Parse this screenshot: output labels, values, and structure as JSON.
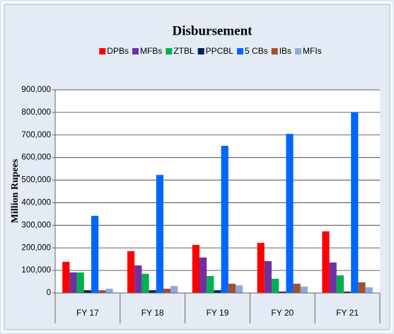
{
  "chart_data": {
    "type": "bar",
    "title": "Disbursement",
    "ylabel": "Million Rupees",
    "categories": [
      "FY 17",
      "FY 18",
      "FY 19",
      "FY 20",
      "FY 21"
    ],
    "series": [
      {
        "name": "DPBs",
        "color": "#ff0000",
        "values": [
          138000,
          185000,
          213000,
          222000,
          273000
        ]
      },
      {
        "name": "MFBs",
        "color": "#7030a0",
        "values": [
          91000,
          122000,
          157000,
          141000,
          135000
        ]
      },
      {
        "name": "ZTBL",
        "color": "#00b050",
        "values": [
          91000,
          85000,
          75000,
          63000,
          78000
        ]
      },
      {
        "name": "PPCBL",
        "color": "#002060",
        "values": [
          12000,
          12000,
          12000,
          6000,
          6000
        ]
      },
      {
        "name": "5 CBs",
        "color": "#0066ff",
        "values": [
          342000,
          523000,
          652000,
          705000,
          802000
        ]
      },
      {
        "name": "IBs",
        "color": "#a0522d",
        "values": [
          12000,
          19000,
          41000,
          41000,
          47000
        ]
      },
      {
        "name": "MFIs",
        "color": "#8eaadb",
        "values": [
          19000,
          31000,
          34000,
          28000,
          25000
        ]
      }
    ],
    "ylim": [
      0,
      900000
    ],
    "yticks": [
      0,
      {
        "value": 100000,
        "label": "100,000"
      },
      {
        "value": 200000,
        "label": "200,000"
      },
      {
        "value": 300000,
        "label": "300,000"
      },
      {
        "value": 400000,
        "label": "400,000"
      },
      {
        "value": 500000,
        "label": "500,000"
      },
      {
        "value": 600000,
        "label": "600,000"
      },
      {
        "value": 700000,
        "label": "700,000"
      },
      {
        "value": 800000,
        "label": "800,000"
      },
      {
        "value": 900000,
        "label": "900,000"
      }
    ],
    "grid": true,
    "legend": "top"
  }
}
